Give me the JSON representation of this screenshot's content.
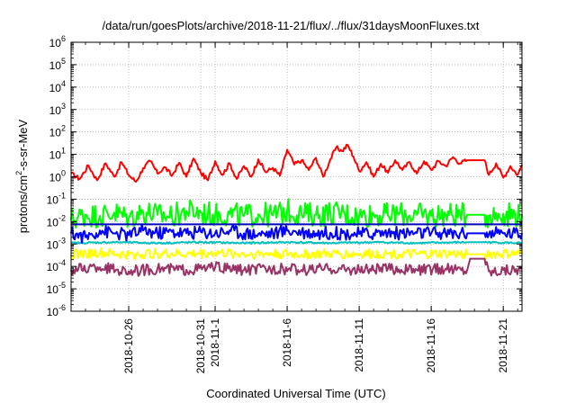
{
  "chart_data": {
    "type": "line",
    "title": "/data/run/goesPlots/archive/2018-11-21/flux/../flux/31daysMoonFluxes.txt",
    "xlabel": "Coordinated Universal Time (UTC)",
    "ylabel_parts": [
      "protons/cm",
      "2",
      "-s-sr-MeV"
    ],
    "yscale": "log",
    "ylim": [
      1e-06,
      1000000.0
    ],
    "y_tick_exponents": [
      "-6",
      "-5",
      "-4",
      "-3",
      "-2",
      "-1",
      "0",
      "1",
      "2",
      "3",
      "4",
      "5",
      "6"
    ],
    "y_tick_base": "10",
    "xlim": [
      "2018-10-22",
      "2018-11-22.3"
    ],
    "x_ticks": [
      {
        "date": "2018-10-26",
        "label": "2018-10-26"
      },
      {
        "date": "2018-10-31",
        "label": "2018-10-31"
      },
      {
        "date": "2018-11-01",
        "label": "2018-11-1"
      },
      {
        "date": "2018-11-06",
        "label": "2018-11-6"
      },
      {
        "date": "2018-11-11",
        "label": "2018-11-11"
      },
      {
        "date": "2018-11-16",
        "label": "2018-11-16"
      },
      {
        "date": "2018-11-21",
        "label": "2018-11-21"
      }
    ],
    "grid": true,
    "data_gap": {
      "start": "2018-11-18.5",
      "end": "2018-11-19.7"
    },
    "series": [
      {
        "color": "#ff0000",
        "values": [
          [
            "2018-10-22",
            1.4
          ],
          [
            "2018-10-22.6",
            0.8
          ],
          [
            "2018-10-23.2",
            3.2
          ],
          [
            "2018-10-23.8",
            0.7
          ],
          [
            "2018-10-24.4",
            4.0
          ],
          [
            "2018-10-25",
            1.0
          ],
          [
            "2018-10-25.5",
            4.5
          ],
          [
            "2018-10-26",
            1.2
          ],
          [
            "2018-10-26.5",
            0.6
          ],
          [
            "2018-10-27",
            2.4
          ],
          [
            "2018-10-27.5",
            5.0
          ],
          [
            "2018-10-28",
            1.4
          ],
          [
            "2018-10-28.5",
            2.7
          ],
          [
            "2018-10-29",
            1.1
          ],
          [
            "2018-10-29.5",
            4.2
          ],
          [
            "2018-10-30",
            1.0
          ],
          [
            "2018-10-30.5",
            6.5
          ],
          [
            "2018-10-31",
            1.5
          ],
          [
            "2018-10-31.5",
            0.7
          ],
          [
            "2018-11-01",
            5.0
          ],
          [
            "2018-11-01.5",
            1.2
          ],
          [
            "2018-11-02",
            4.0
          ],
          [
            "2018-11-02.5",
            0.8
          ],
          [
            "2018-11-03",
            3.0
          ],
          [
            "2018-11-03.5",
            1.0
          ],
          [
            "2018-11-04",
            6.0
          ],
          [
            "2018-11-04.5",
            1.6
          ],
          [
            "2018-11-05",
            2.5
          ],
          [
            "2018-11-05.5",
            1.1
          ],
          [
            "2018-11-06",
            16
          ],
          [
            "2018-11-06.5",
            3.5
          ],
          [
            "2018-11-07",
            5.5
          ],
          [
            "2018-11-07.5",
            2.0
          ],
          [
            "2018-11-08",
            7.0
          ],
          [
            "2018-11-08.5",
            1.0
          ],
          [
            "2018-11-09",
            6.0
          ],
          [
            "2018-11-09.4",
            20
          ],
          [
            "2018-11-09.8",
            14
          ],
          [
            "2018-11-10.2",
            26
          ],
          [
            "2018-11-10.6",
            8.0
          ],
          [
            "2018-11-11",
            1.8
          ],
          [
            "2018-11-11.5",
            4.5
          ],
          [
            "2018-11-12",
            1.0
          ],
          [
            "2018-11-12.5",
            3.8
          ],
          [
            "2018-11-13",
            1.5
          ],
          [
            "2018-11-13.5",
            5.5
          ],
          [
            "2018-11-14",
            2.0
          ],
          [
            "2018-11-14.5",
            4.5
          ],
          [
            "2018-11-15",
            1.4
          ],
          [
            "2018-11-15.5",
            5.0
          ],
          [
            "2018-11-16",
            2.0
          ],
          [
            "2018-11-16.5",
            5.0
          ],
          [
            "2018-11-17",
            3.0
          ],
          [
            "2018-11-17.5",
            7.5
          ],
          [
            "2018-11-18",
            4.0
          ],
          [
            "2018-11-18.5",
            5.5
          ],
          [
            "2018-11-19.7",
            5.5
          ],
          [
            "2018-11-20",
            1.2
          ],
          [
            "2018-11-20.5",
            4.0
          ],
          [
            "2018-11-21",
            0.9
          ],
          [
            "2018-11-21.5",
            3.0
          ],
          [
            "2018-11-22",
            1.2
          ],
          [
            "2018-11-22.3",
            3.5
          ]
        ]
      },
      {
        "color": "#00ff00",
        "values": [
          [
            "2018-10-22",
            0.012
          ],
          [
            "2018-10-23",
            0.02
          ],
          [
            "2018-10-24",
            0.018
          ],
          [
            "2018-10-25",
            0.025
          ],
          [
            "2018-10-26",
            0.015
          ],
          [
            "2018-10-27",
            0.028
          ],
          [
            "2018-10-28",
            0.02
          ],
          [
            "2018-10-29",
            0.017
          ],
          [
            "2018-10-30",
            0.03
          ],
          [
            "2018-10-31",
            0.025
          ],
          [
            "2018-11-01",
            0.02
          ],
          [
            "2018-11-02",
            0.022
          ],
          [
            "2018-11-03",
            0.018
          ],
          [
            "2018-11-04",
            0.021
          ],
          [
            "2018-11-05",
            0.019
          ],
          [
            "2018-11-06",
            0.03
          ],
          [
            "2018-11-07",
            0.022
          ],
          [
            "2018-11-08",
            0.02
          ],
          [
            "2018-11-09",
            0.024
          ],
          [
            "2018-11-10",
            0.023
          ],
          [
            "2018-11-11",
            0.018
          ],
          [
            "2018-11-12",
            0.021
          ],
          [
            "2018-11-13",
            0.019
          ],
          [
            "2018-11-14",
            0.022
          ],
          [
            "2018-11-15",
            0.02
          ],
          [
            "2018-11-16",
            0.018
          ],
          [
            "2018-11-17",
            0.021
          ],
          [
            "2018-11-18",
            0.019
          ],
          [
            "2018-11-18.5",
            0.02
          ],
          [
            "2018-11-19.7",
            0.02
          ],
          [
            "2018-11-20",
            0.018
          ],
          [
            "2018-11-21",
            0.022
          ],
          [
            "2018-11-22.3",
            0.02
          ]
        ]
      },
      {
        "color": "#00c0c0",
        "values": [
          [
            "2018-10-22",
            0.0011
          ],
          [
            "2018-10-25",
            0.0012
          ],
          [
            "2018-10-28",
            0.0011
          ],
          [
            "2018-10-31",
            0.0012
          ],
          [
            "2018-11-03",
            0.0011
          ],
          [
            "2018-11-06",
            0.0012
          ],
          [
            "2018-11-09",
            0.0011
          ],
          [
            "2018-11-12",
            0.0012
          ],
          [
            "2018-11-15",
            0.0011
          ],
          [
            "2018-11-18.5",
            0.0012
          ],
          [
            "2018-11-19.7",
            0.0012
          ],
          [
            "2018-11-22.3",
            0.0011
          ]
        ]
      },
      {
        "color": "#0000ff",
        "values": [
          [
            "2018-10-22",
            0.003
          ],
          [
            "2018-10-23",
            0.002
          ],
          [
            "2018-10-24",
            0.004
          ],
          [
            "2018-10-25",
            0.003
          ],
          [
            "2018-10-26",
            0.0025
          ],
          [
            "2018-10-27",
            0.004
          ],
          [
            "2018-10-28",
            0.003
          ],
          [
            "2018-10-29",
            0.0035
          ],
          [
            "2018-10-30",
            0.003
          ],
          [
            "2018-10-31",
            0.0035
          ],
          [
            "2018-11-01",
            0.003
          ],
          [
            "2018-11-02",
            0.004
          ],
          [
            "2018-11-03",
            0.003
          ],
          [
            "2018-11-04",
            0.0028
          ],
          [
            "2018-11-05",
            0.003
          ],
          [
            "2018-11-06",
            0.004
          ],
          [
            "2018-11-07",
            0.0035
          ],
          [
            "2018-11-08",
            0.003
          ],
          [
            "2018-11-09",
            0.0032
          ],
          [
            "2018-11-10",
            0.003
          ],
          [
            "2018-11-11",
            0.0028
          ],
          [
            "2018-11-12",
            0.003
          ],
          [
            "2018-11-13",
            0.0032
          ],
          [
            "2018-11-14",
            0.003
          ],
          [
            "2018-11-15",
            0.0031
          ],
          [
            "2018-11-16",
            0.003
          ],
          [
            "2018-11-17",
            0.0029
          ],
          [
            "2018-11-18",
            0.003
          ],
          [
            "2018-11-18.5",
            0.003
          ],
          [
            "2018-11-19.7",
            0.003
          ],
          [
            "2018-11-20",
            0.0028
          ],
          [
            "2018-11-21",
            0.003
          ],
          [
            "2018-11-22.3",
            0.003
          ]
        ]
      },
      {
        "color": "#0000c0",
        "values": [
          [
            "2018-10-22",
            0.0075
          ],
          [
            "2018-10-26",
            0.0075
          ],
          [
            "2018-10-30",
            0.0075
          ],
          [
            "2018-11-03",
            0.0075
          ],
          [
            "2018-11-07",
            0.0075
          ],
          [
            "2018-11-11",
            0.0075
          ],
          [
            "2018-11-15",
            0.0075
          ],
          [
            "2018-11-18.5",
            0.0075
          ],
          [
            "2018-11-22.3",
            0.0075
          ]
        ]
      },
      {
        "color": "#ffff00",
        "values": [
          [
            "2018-10-22",
            0.00035
          ],
          [
            "2018-10-24",
            0.0004
          ],
          [
            "2018-10-26",
            0.00032
          ],
          [
            "2018-10-28",
            0.00038
          ],
          [
            "2018-10-30",
            0.00035
          ],
          [
            "2018-11-01",
            0.0004
          ],
          [
            "2018-11-03",
            0.00035
          ],
          [
            "2018-11-05",
            0.00037
          ],
          [
            "2018-11-07",
            0.00034
          ],
          [
            "2018-11-09",
            0.00036
          ],
          [
            "2018-11-11",
            0.00035
          ],
          [
            "2018-11-13",
            0.00037
          ],
          [
            "2018-11-15",
            0.00034
          ],
          [
            "2018-11-17",
            0.00036
          ],
          [
            "2018-11-18.5",
            0.00035
          ],
          [
            "2018-11-19.7",
            0.00035
          ],
          [
            "2018-11-21",
            0.00036
          ],
          [
            "2018-11-22.3",
            0.00035
          ]
        ]
      },
      {
        "color": "#993366",
        "values": [
          [
            "2018-10-22",
            7e-05
          ],
          [
            "2018-10-24",
            9e-05
          ],
          [
            "2018-10-26",
            6e-05
          ],
          [
            "2018-10-28",
            8e-05
          ],
          [
            "2018-10-30",
            7e-05
          ],
          [
            "2018-11-01",
            9e-05
          ],
          [
            "2018-11-03",
            7e-05
          ],
          [
            "2018-11-05",
            8e-05
          ],
          [
            "2018-11-07",
            7e-05
          ],
          [
            "2018-11-09",
            8e-05
          ],
          [
            "2018-11-11",
            7e-05
          ],
          [
            "2018-11-13",
            8e-05
          ],
          [
            "2018-11-15",
            7e-05
          ],
          [
            "2018-11-17",
            8e-05
          ],
          [
            "2018-11-18.5",
            7e-05
          ],
          [
            "2018-11-18.7",
            0.00022
          ],
          [
            "2018-11-19.7",
            0.00022
          ],
          [
            "2018-11-20",
            6e-05
          ],
          [
            "2018-11-21",
            7e-05
          ],
          [
            "2018-11-22.3",
            8e-05
          ]
        ]
      }
    ]
  }
}
